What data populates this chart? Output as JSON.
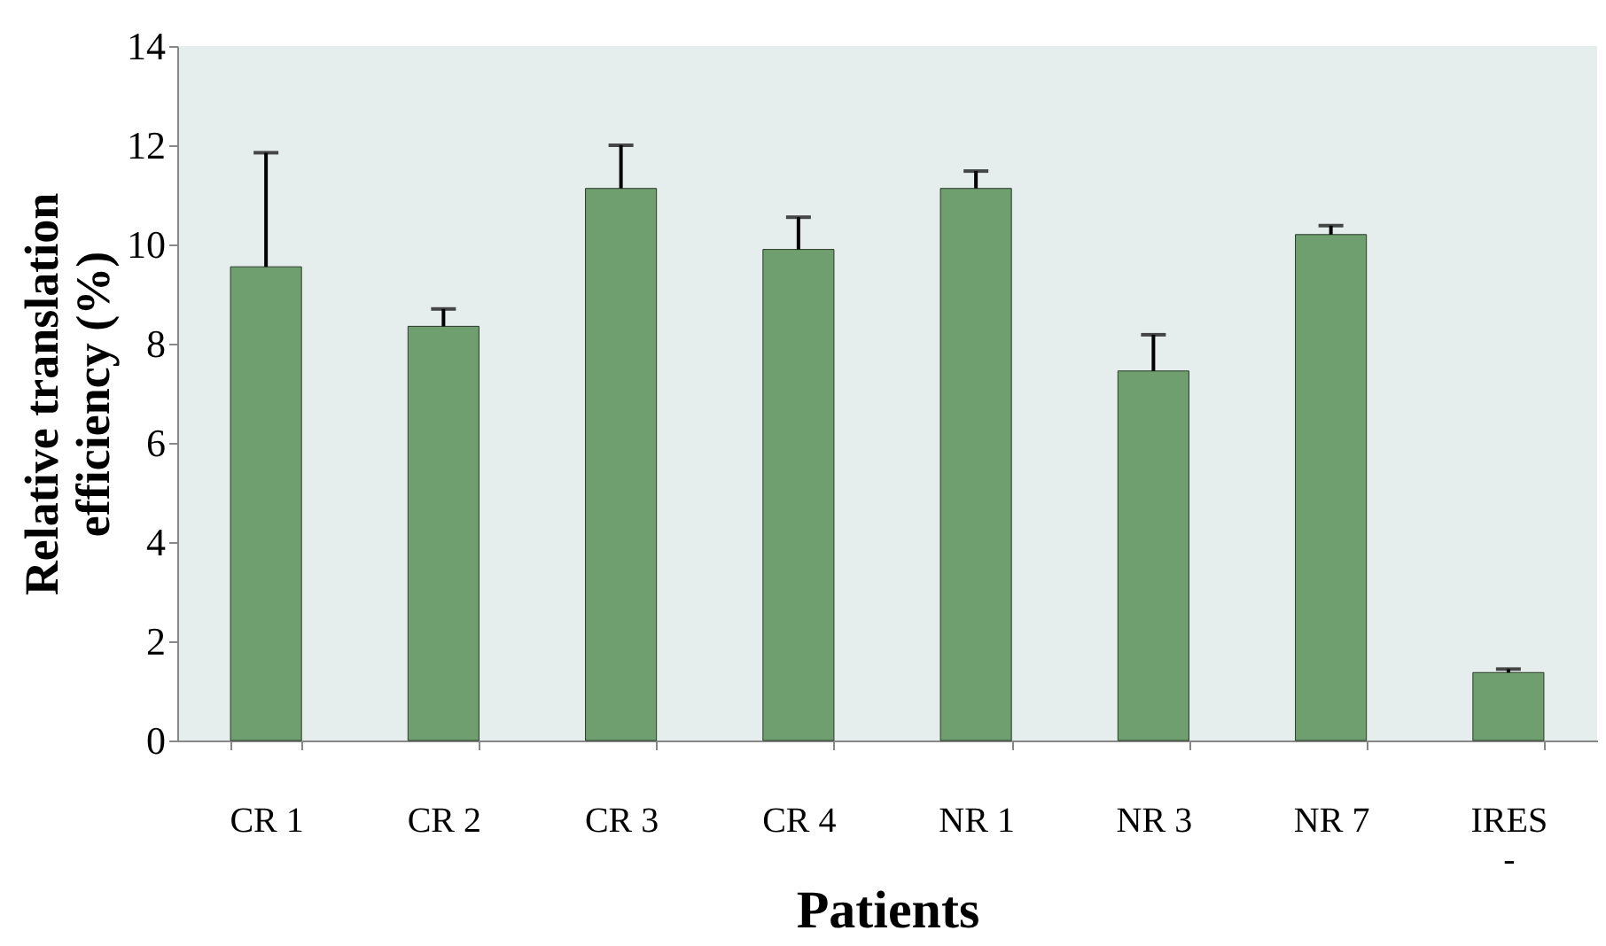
{
  "chart_data": {
    "type": "bar",
    "xlabel": "Patients",
    "ylabel": "Relative translation efficiency (%)",
    "categories": [
      "CR 1",
      "CR 2",
      "CR 3",
      "CR 4",
      "NR 1",
      "NR 3",
      "NR 7",
      "IRES\n-"
    ],
    "values": [
      9.55,
      8.35,
      11.13,
      9.9,
      11.13,
      7.45,
      10.2,
      1.37
    ],
    "errors": [
      [
        9.55,
        11.85
      ],
      [
        8.35,
        8.7
      ],
      [
        11.13,
        12.0
      ],
      [
        9.9,
        10.55
      ],
      [
        11.13,
        11.48
      ],
      [
        7.45,
        8.18
      ],
      [
        10.2,
        10.38
      ],
      [
        1.37,
        1.44
      ]
    ],
    "color": "#6f9e6f",
    "ylim": [
      0,
      14
    ],
    "yticks": [
      0,
      2,
      4,
      6,
      8,
      10,
      12,
      14
    ],
    "grid": false
  }
}
